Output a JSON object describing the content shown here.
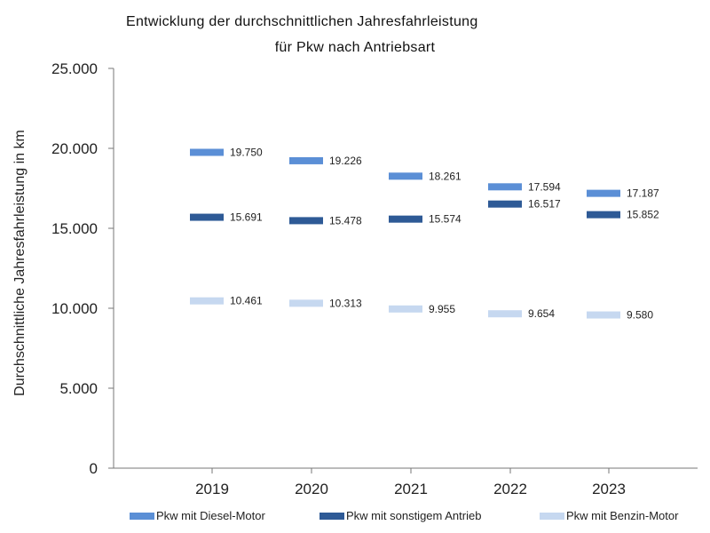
{
  "chart_data": {
    "type": "scatter",
    "title_line1": "Entwicklung der durchschnittlichen Jahresfahrleistung",
    "title_line2": "für Pkw nach Antriebsart",
    "ylabel": "Durchschnittliche Jahresfahrleistung in km",
    "xlabel": "",
    "ylim": [
      0,
      25000
    ],
    "yticks": [
      0,
      5000,
      10000,
      15000,
      20000,
      25000
    ],
    "ytick_labels": [
      "0",
      "5.000",
      "10.000",
      "15.000",
      "20.000",
      "25.000"
    ],
    "categories": [
      "2019",
      "2020",
      "2021",
      "2022",
      "2023"
    ],
    "series": [
      {
        "name": "Pkw mit Diesel-Motor",
        "color": "#5b8fd6",
        "values": [
          19750,
          19226,
          18261,
          17594,
          17187
        ],
        "labels": [
          "19.750",
          "19.226",
          "18.261",
          "17.594",
          "17.187"
        ]
      },
      {
        "name": "Pkw mit sonstigem Antrieb",
        "color": "#2e5a96",
        "values": [
          15691,
          15478,
          15574,
          16517,
          15852
        ],
        "labels": [
          "15.691",
          "15.478",
          "15.574",
          "16.517",
          "15.852"
        ]
      },
      {
        "name": "Pkw mit Benzin-Motor",
        "color": "#c6d8f0",
        "values": [
          10461,
          10313,
          9955,
          9654,
          9580
        ],
        "labels": [
          "10.461",
          "10.313",
          "9.955",
          "9.654",
          "9.580"
        ]
      }
    ],
    "grid": false,
    "legend_position": "bottom"
  }
}
